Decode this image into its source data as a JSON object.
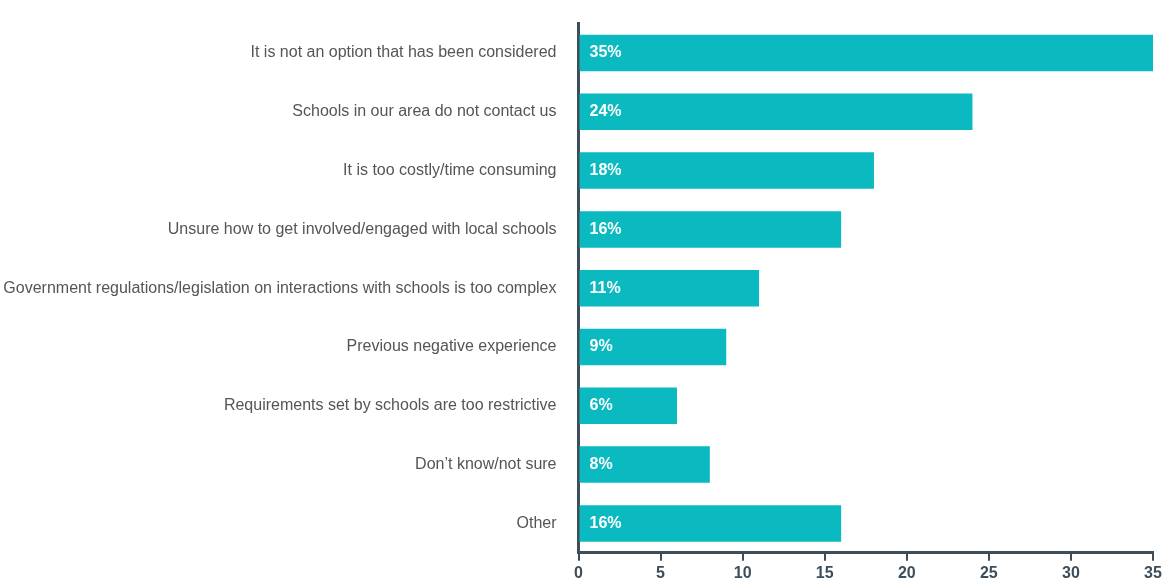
{
  "chart_data": {
    "type": "bar",
    "orientation": "horizontal",
    "categories": [
      "It is not an option that has been considered",
      "Schools in our area do not contact us",
      "It is too costly/time consuming",
      "Unsure how to get involved/engaged with local schools",
      "Government regulations/legislation on interactions with schools is too complex",
      "Previous negative experience",
      "Requirements set by schools are too restrictive",
      "Don’t know/not sure",
      "Other"
    ],
    "values": [
      35,
      24,
      18,
      16,
      11,
      9,
      6,
      8,
      16
    ],
    "value_labels": [
      "35%",
      "24%",
      "18%",
      "16%",
      "11%",
      "9%",
      "6%",
      "8%",
      "16%"
    ],
    "color": "#0bbac1",
    "xlim": [
      0,
      35
    ],
    "xticks": [
      0,
      5,
      10,
      15,
      20,
      25,
      30,
      35
    ],
    "grid": false,
    "legend": false
  }
}
